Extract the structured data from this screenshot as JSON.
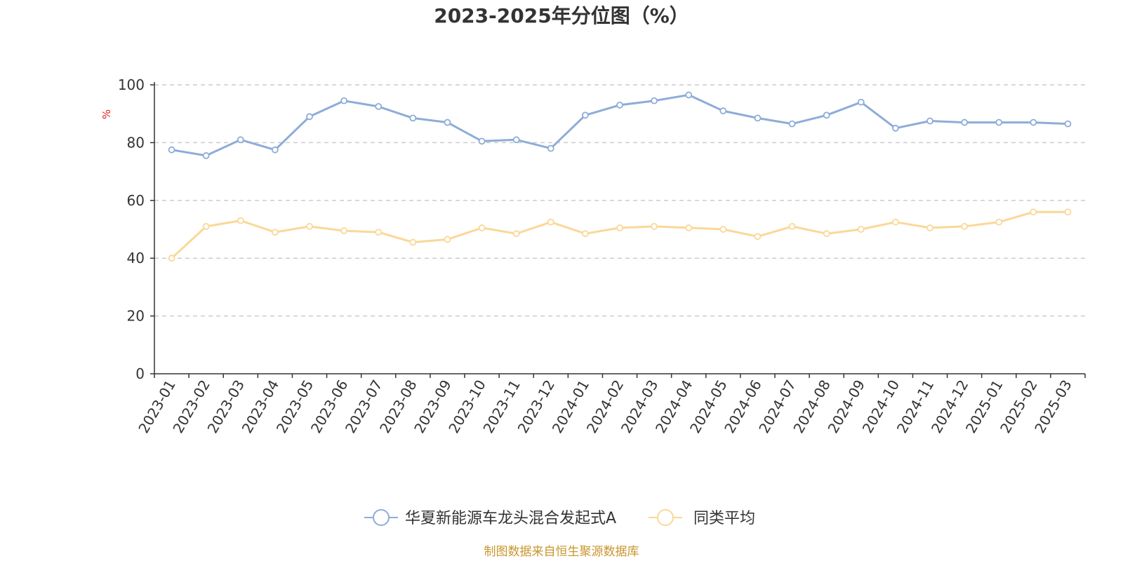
{
  "chart_data": {
    "type": "line",
    "title": "2023-2025年分位图（%）",
    "ylabel": "%",
    "xlabel": "",
    "ylim": [
      0,
      100
    ],
    "yticks": [
      0,
      20,
      40,
      60,
      80,
      100
    ],
    "grid": true,
    "legend_position": "bottom-center",
    "categories": [
      "2023-01",
      "2023-02",
      "2023-03",
      "2023-04",
      "2023-05",
      "2023-06",
      "2023-07",
      "2023-08",
      "2023-09",
      "2023-10",
      "2023-11",
      "2023-12",
      "2024-01",
      "2024-02",
      "2024-03",
      "2024-04",
      "2024-05",
      "2024-06",
      "2024-07",
      "2024-08",
      "2024-09",
      "2024-10",
      "2024-11",
      "2024-12",
      "2025-01",
      "2025-02",
      "2025-03"
    ],
    "series": [
      {
        "name": "华夏新能源车龙头混合发起式A",
        "color": "#8eacd9",
        "values": [
          77.5,
          75.5,
          81,
          77.5,
          89,
          94.5,
          92.5,
          88.5,
          87,
          80.5,
          81,
          78,
          89.5,
          93,
          94.5,
          96.5,
          91,
          88.5,
          86.5,
          89.5,
          94,
          85,
          87.5,
          87,
          87,
          87,
          86.5
        ]
      },
      {
        "name": "同类平均",
        "color": "#fad898",
        "values": [
          40,
          51,
          53,
          49,
          51,
          49.5,
          49,
          45.5,
          46.5,
          50.5,
          48.5,
          52.5,
          48.5,
          50.5,
          51,
          50.5,
          50,
          47.5,
          51,
          48.5,
          50,
          52.5,
          50.5,
          51,
          52.5,
          56,
          56
        ]
      }
    ]
  },
  "source_text": "制图数据来自恒生聚源数据库"
}
